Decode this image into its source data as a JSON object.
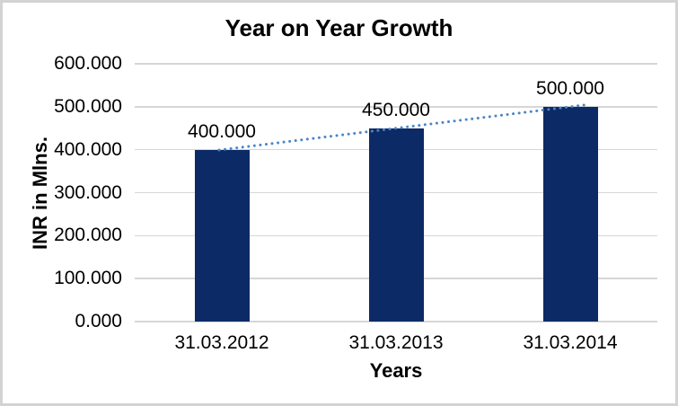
{
  "window": {
    "background": "#ffffff",
    "border_color": "#d3d3d3"
  },
  "chart_data": {
    "type": "bar",
    "title": "Year on Year Growth",
    "xlabel": "Years",
    "ylabel": "INR in Mlns.",
    "categories": [
      "31.03.2012",
      "31.03.2013",
      "31.03.2014"
    ],
    "values": [
      400,
      450,
      500
    ],
    "value_labels": [
      "400.000",
      "450.000",
      "500.000"
    ],
    "y_ticks": [
      0,
      100,
      200,
      300,
      400,
      500,
      600
    ],
    "y_tick_labels": [
      "0.000",
      "100.000",
      "200.000",
      "300.000",
      "400.000",
      "500.000",
      "600.000"
    ],
    "ylim": [
      0,
      600
    ],
    "grid": true,
    "legend": "none",
    "bar_color": "#0c2a66",
    "gridline_color": "#d6d6d6",
    "text_color": "#000000",
    "trendline": {
      "type": "linear",
      "style": "dotted",
      "color": "#4a86c8",
      "through_values": [
        400,
        500
      ]
    }
  }
}
